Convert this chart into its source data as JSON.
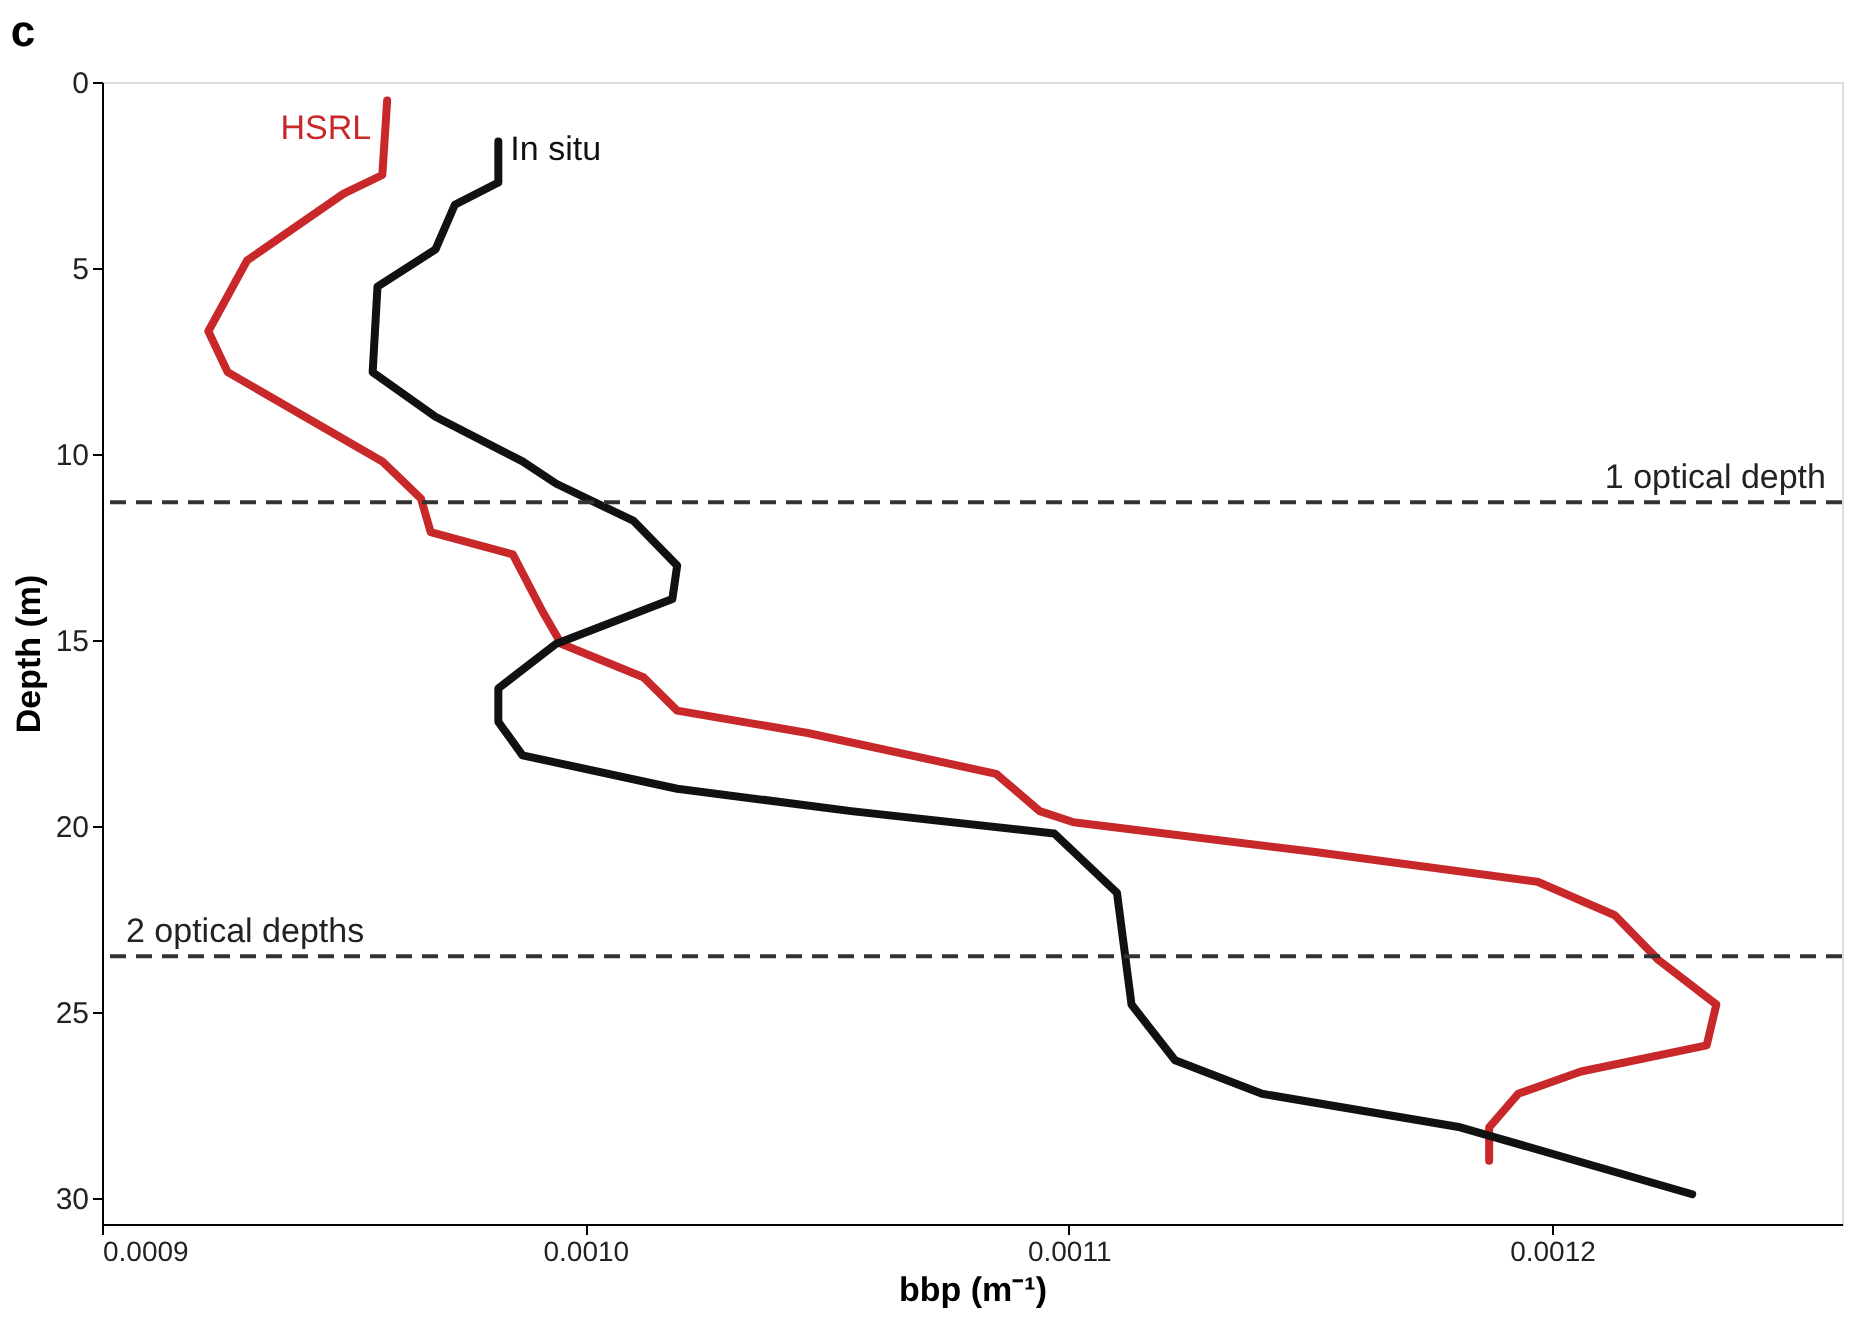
{
  "chart_data": {
    "type": "line",
    "title": "c",
    "xlabel": "bbp (m⁻¹)",
    "ylabel": "Depth (m)",
    "xlim": [
      0.0009,
      0.00126
    ],
    "xticks": [
      {
        "value": 0.0009,
        "label": "0.0009"
      },
      {
        "value": 0.001,
        "label": "0.0010"
      },
      {
        "value": 0.0011,
        "label": "0.0011"
      },
      {
        "value": 0.0012,
        "label": "0.0012"
      }
    ],
    "ylim": [
      30.7,
      0
    ],
    "yticks": [
      0,
      5,
      10,
      15,
      20,
      25,
      30
    ],
    "grid": false,
    "legend": false,
    "marker": "none",
    "line_style": "solid",
    "series": [
      {
        "name": "HSRL",
        "color": "#c8282a",
        "x": [
          0.000959,
          0.000958,
          0.00095,
          0.00093,
          0.000922,
          0.000926,
          0.000946,
          0.000958,
          0.000966,
          0.000968,
          0.000985,
          0.000991,
          0.000995,
          0.001012,
          0.001019,
          0.001046,
          0.001085,
          0.001094,
          0.001101,
          0.001151,
          0.001197,
          0.001213,
          0.001222,
          0.001234,
          0.001232,
          0.001206,
          0.001193,
          0.001187,
          0.001187
        ],
        "values": [
          0.5,
          2.5,
          3.0,
          4.8,
          6.7,
          7.8,
          9.3,
          10.2,
          11.2,
          12.1,
          12.7,
          14.2,
          15.1,
          16.0,
          16.9,
          17.5,
          18.6,
          19.6,
          19.9,
          20.7,
          21.5,
          22.4,
          23.6,
          24.8,
          25.9,
          26.6,
          27.2,
          28.1,
          29.0
        ]
      },
      {
        "name": "In situ",
        "color": "#111111",
        "x": [
          0.000982,
          0.000982,
          0.000973,
          0.000969,
          0.000957,
          0.000956,
          0.000969,
          0.000987,
          0.000994,
          0.00101,
          0.001019,
          0.001018,
          0.000994,
          0.000982,
          0.000982,
          0.000987,
          0.001019,
          0.001055,
          0.001097,
          0.00111,
          0.001113,
          0.001122,
          0.00114,
          0.001181,
          0.001229
        ],
        "values": [
          1.6,
          2.7,
          3.3,
          4.5,
          5.5,
          7.8,
          9.0,
          10.2,
          10.8,
          11.8,
          13.0,
          13.9,
          15.1,
          16.3,
          17.2,
          18.1,
          19.0,
          19.6,
          20.2,
          21.8,
          24.8,
          26.3,
          27.2,
          28.1,
          29.9
        ]
      }
    ],
    "ref_lines": [
      {
        "axis": "y",
        "value": 11.3,
        "label": "1 optical depth",
        "color": "#333333",
        "line_style": "dashed"
      },
      {
        "axis": "y",
        "value": 23.5,
        "label": "2 optical depths",
        "color": "#333333",
        "line_style": "dashed"
      }
    ]
  }
}
